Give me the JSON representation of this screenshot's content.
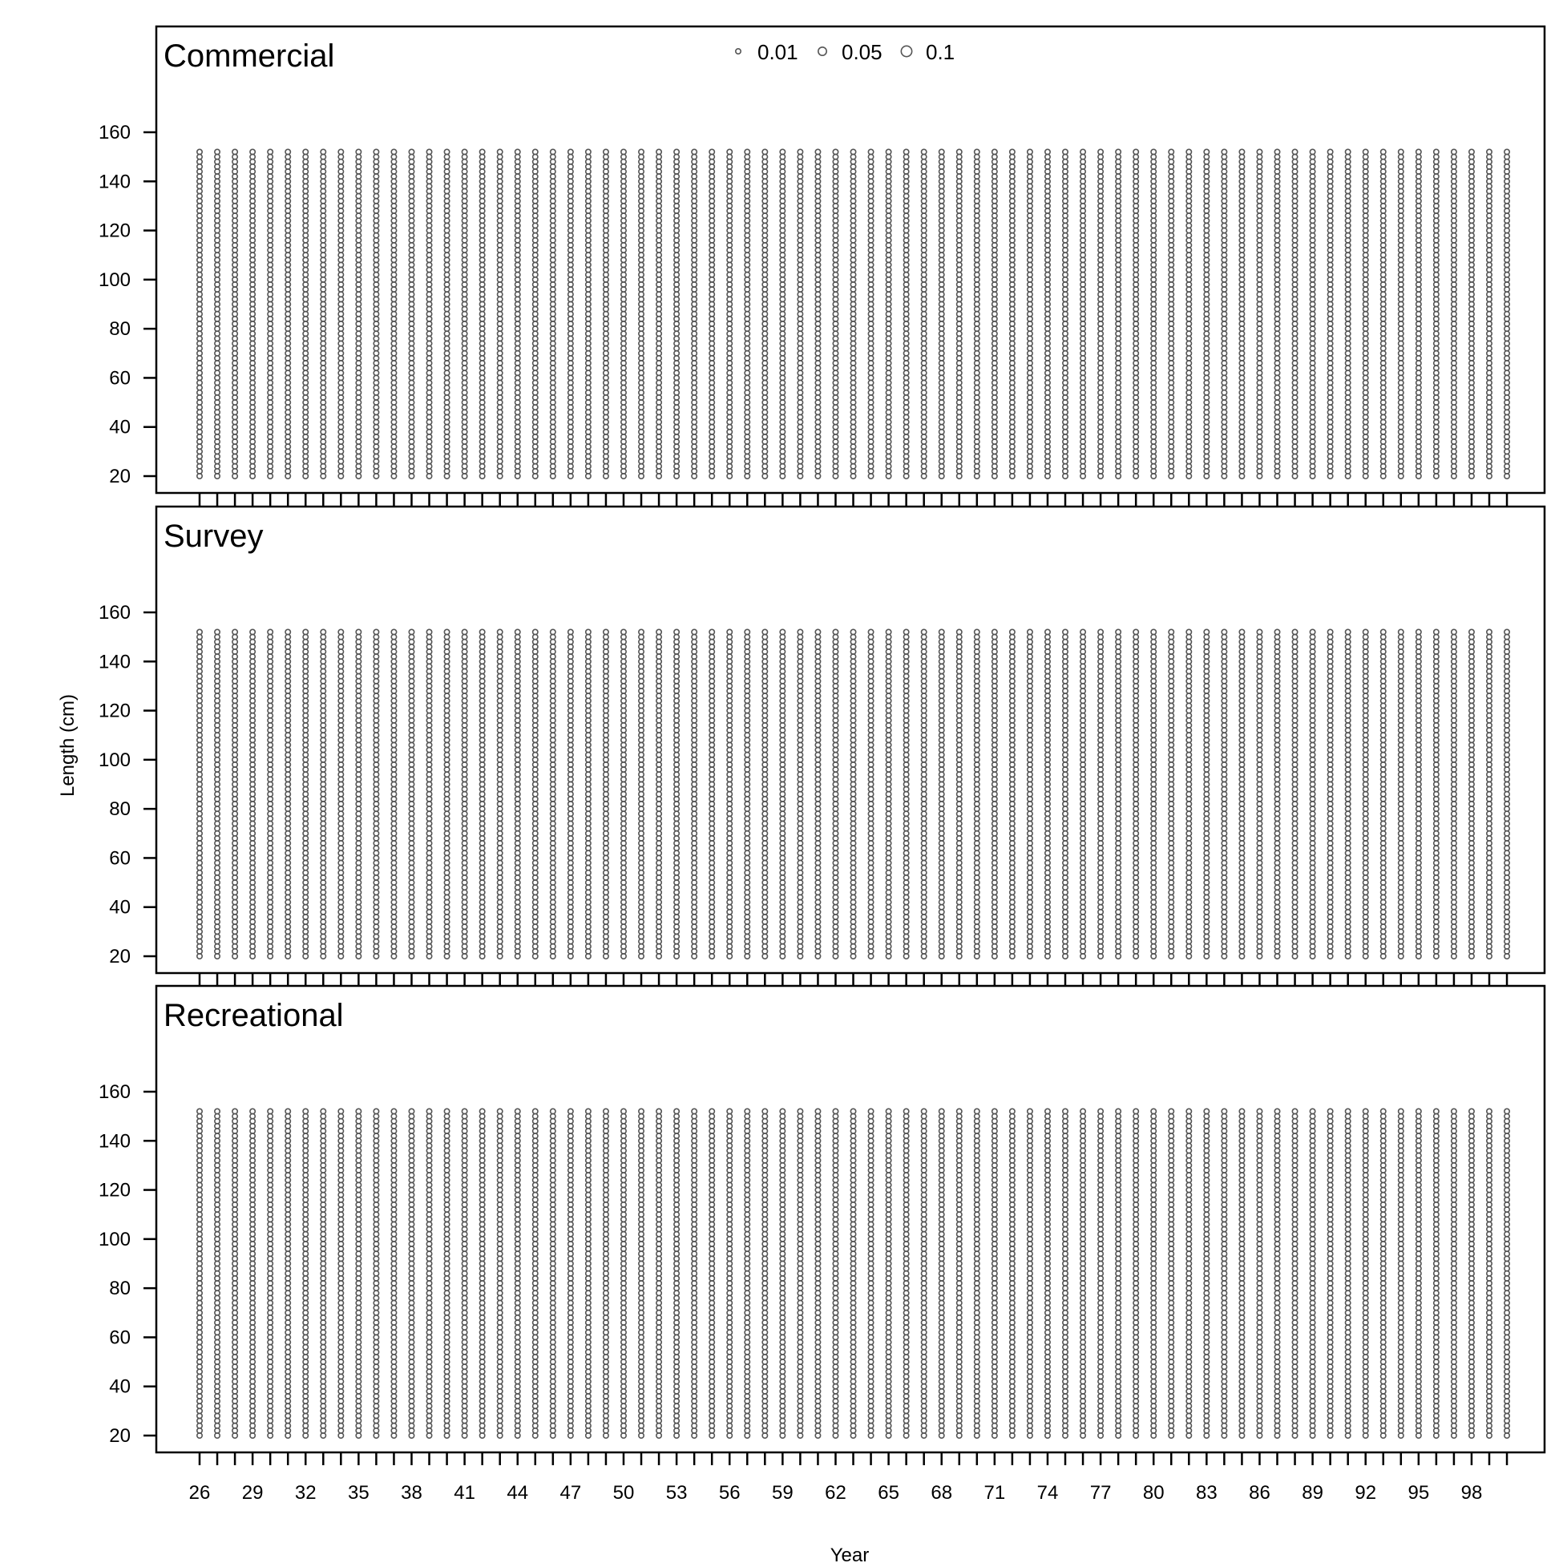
{
  "chart_data": {
    "type": "scatter",
    "subtype": "bubble",
    "xlabel": "Year",
    "ylabel": "Length (cm)",
    "years": [
      26,
      27,
      28,
      29,
      30,
      31,
      32,
      33,
      34,
      35,
      36,
      37,
      38,
      39,
      40,
      41,
      42,
      43,
      44,
      45,
      46,
      47,
      48,
      49,
      50,
      51,
      52,
      53,
      54,
      55,
      56,
      57,
      58,
      59,
      60,
      61,
      62,
      63,
      64,
      65,
      66,
      67,
      68,
      69,
      70,
      71,
      72,
      73,
      74,
      75,
      76,
      77,
      78,
      79,
      80,
      81,
      82,
      83,
      84,
      85,
      86,
      87,
      88,
      89,
      90,
      91,
      92,
      93,
      94,
      95,
      96,
      97,
      98,
      99,
      100
    ],
    "x_tick_labels": [
      26,
      29,
      32,
      35,
      38,
      41,
      44,
      47,
      50,
      53,
      56,
      59,
      62,
      65,
      68,
      71,
      74,
      77,
      80,
      83,
      86,
      89,
      92,
      95,
      98
    ],
    "y_ticks": [
      20,
      40,
      60,
      80,
      100,
      120,
      140,
      160
    ],
    "ylim": [
      14,
      200
    ],
    "length_bins": {
      "min": 20,
      "max": 152,
      "step": 2
    },
    "bubble_value": 0.01,
    "legend": {
      "placement": "top-center",
      "entries": [
        {
          "label": "0.01",
          "value": 0.01
        },
        {
          "label": "0.05",
          "value": 0.05
        },
        {
          "label": "0.1",
          "value": 0.1
        }
      ]
    },
    "panels": [
      {
        "name": "Commercial"
      },
      {
        "name": "Survey"
      },
      {
        "name": "Recreational"
      }
    ]
  }
}
